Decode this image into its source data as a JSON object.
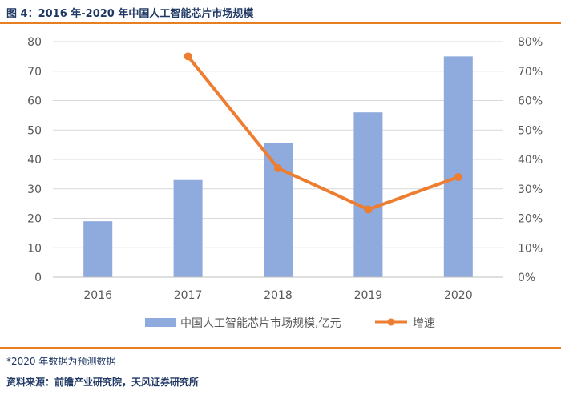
{
  "figure": {
    "title": "图 4：2016 年-2020 年中国人工智能芯片市场规模",
    "note": "*2020 年数据为预测数据",
    "source": "资料来源：前瞻产业研究院，天风证券研究所"
  },
  "colors": {
    "bar": "#8faadc",
    "line": "#ed7d31",
    "accent": "#e67e22",
    "title": "#1f3864"
  },
  "chart_data": {
    "type": "bar",
    "categories": [
      "2016",
      "2017",
      "2018",
      "2019",
      "2020"
    ],
    "series": [
      {
        "name": "中国人工智能芯片市场规模,亿元",
        "type": "bar",
        "axis": "left",
        "values": [
          19,
          33,
          45.5,
          56,
          75
        ]
      },
      {
        "name": "增速",
        "type": "line",
        "axis": "right",
        "values": [
          null,
          75,
          37,
          23,
          34
        ],
        "unit": "%"
      }
    ],
    "ylim": [
      0,
      80
    ],
    "y_ticks": [
      "0",
      "10",
      "20",
      "30",
      "40",
      "50",
      "60",
      "70",
      "80"
    ],
    "y2lim": [
      0,
      80
    ],
    "y2_ticks": [
      "0%",
      "10%",
      "20%",
      "30%",
      "40%",
      "50%",
      "60%",
      "70%",
      "80%"
    ],
    "grid": true,
    "legend": "bottom"
  }
}
